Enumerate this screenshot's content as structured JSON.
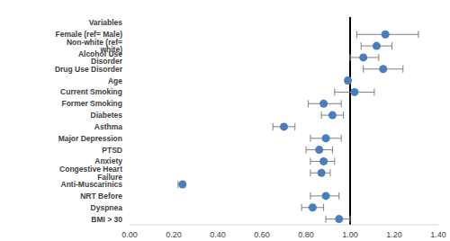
{
  "chart_data": {
    "type": "scatter",
    "marker": "circle",
    "color": "#4a7ebb",
    "grid": false,
    "categories": [
      "Variables",
      "Female (ref= Male)",
      "Non-white (ref= white)",
      "Alcohol Use Disorder",
      "Drug Use Disorder",
      "Age",
      "Current Smoking",
      "Former Smoking",
      "Diabetes",
      "Asthma",
      "Major Depression",
      "PTSD",
      "Anxiety",
      "Congestive Heart Failure",
      "Anti-Muscarinics",
      "NRT Before",
      "Dyspnea",
      "BMI > 30"
    ],
    "values": [
      null,
      1.16,
      1.12,
      1.06,
      1.15,
      0.99,
      1.02,
      0.88,
      0.92,
      0.7,
      0.89,
      0.86,
      0.88,
      0.87,
      0.24,
      0.89,
      0.83,
      0.95
    ],
    "ci_low": [
      null,
      1.03,
      1.05,
      1.0,
      1.06,
      0.98,
      0.93,
      0.81,
      0.87,
      0.65,
      0.82,
      0.8,
      0.82,
      0.82,
      0.22,
      0.82,
      0.78,
      0.89
    ],
    "ci_high": [
      null,
      1.31,
      1.19,
      1.13,
      1.24,
      1.0,
      1.11,
      0.96,
      0.97,
      0.75,
      0.96,
      0.92,
      0.93,
      0.91,
      0.25,
      0.95,
      0.88,
      1.0
    ],
    "reference_line": 1,
    "xlim": [
      0,
      1.4
    ],
    "xticks": [
      {
        "value": 0,
        "label": "0.00"
      },
      {
        "value": 0.2,
        "label": "0.20"
      },
      {
        "value": 0.4,
        "label": "0.40"
      },
      {
        "value": 0.6,
        "label": "0.60"
      },
      {
        "value": 0.8,
        "label": "0.80"
      },
      {
        "value": 1,
        "label": "1.00"
      },
      {
        "value": 1.2,
        "label": "1.20"
      },
      {
        "value": 1.4,
        "label": "1.40"
      }
    ]
  }
}
